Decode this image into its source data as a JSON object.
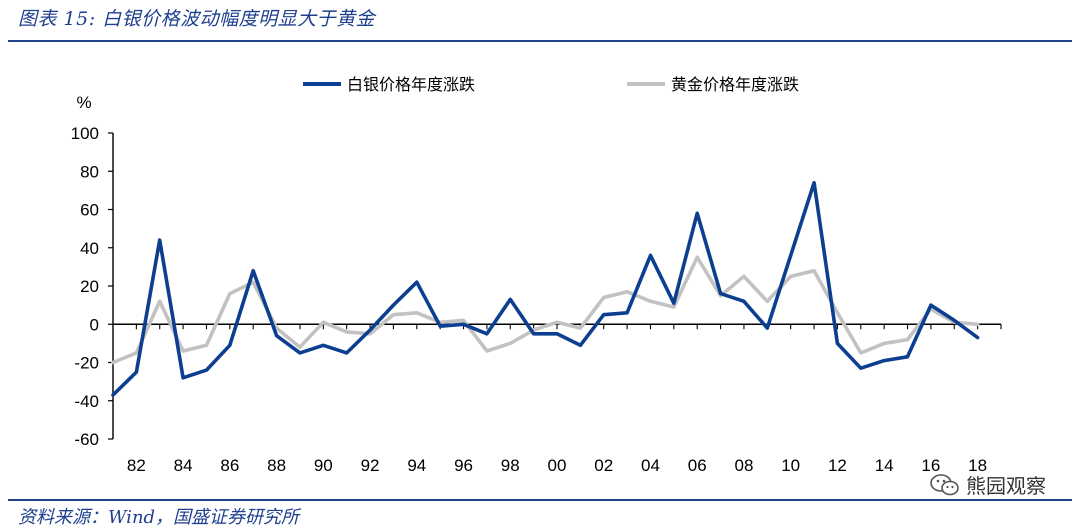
{
  "figure_title": "图表 15:  白银价格波动幅度明显大于黄金",
  "source": "资料来源：Wind，国盛证券研究所",
  "watermark": {
    "text": "熊园观察",
    "icon": "wechat-icon"
  },
  "colors": {
    "title": "#1f3f8f",
    "silver_series": "#0d3f91",
    "gold_series": "#c2c2c2",
    "axis": "#000000"
  },
  "chart_data": {
    "type": "line",
    "title": "",
    "ylabel": "%",
    "xlabel": "",
    "ylim": [
      -60,
      100
    ],
    "yticks": [
      100,
      80,
      60,
      40,
      20,
      0,
      -20,
      -40,
      -60
    ],
    "ytick_labels": [
      "100",
      "80",
      "60",
      "40",
      "20",
      "0",
      "-20",
      "-40",
      "-60"
    ],
    "xlim": [
      1981,
      2019
    ],
    "xticks": [
      1982,
      1984,
      1986,
      1988,
      1990,
      1992,
      1994,
      1996,
      1998,
      2000,
      2002,
      2004,
      2006,
      2008,
      2010,
      2012,
      2014,
      2016,
      2018
    ],
    "xtick_labels": [
      "82",
      "84",
      "86",
      "88",
      "90",
      "92",
      "94",
      "96",
      "98",
      "00",
      "02",
      "04",
      "06",
      "08",
      "10",
      "12",
      "14",
      "16",
      "18"
    ],
    "legend_position": "top",
    "series": [
      {
        "name": "白银价格年度涨跌",
        "points": [
          [
            1981,
            -37
          ],
          [
            1982,
            -25
          ],
          [
            1983,
            44
          ],
          [
            1984,
            -28
          ],
          [
            1985,
            -24
          ],
          [
            1986,
            -11
          ],
          [
            1987,
            28
          ],
          [
            1988,
            -6
          ],
          [
            1989,
            -15
          ],
          [
            1990,
            -11
          ],
          [
            1991,
            -15
          ],
          [
            1992,
            -3
          ],
          [
            1993,
            10
          ],
          [
            1994,
            22
          ],
          [
            1995,
            -1
          ],
          [
            1996,
            0
          ],
          [
            1997,
            -5
          ],
          [
            1998,
            13
          ],
          [
            1999,
            -5
          ],
          [
            2000,
            -5
          ],
          [
            2001,
            -11
          ],
          [
            2002,
            5
          ],
          [
            2003,
            6
          ],
          [
            2004,
            36
          ],
          [
            2005,
            11
          ],
          [
            2006,
            58
          ],
          [
            2007,
            16
          ],
          [
            2008,
            12
          ],
          [
            2009,
            -2
          ],
          [
            2010,
            36
          ],
          [
            2011,
            74
          ],
          [
            2012,
            -10
          ],
          [
            2013,
            -23
          ],
          [
            2014,
            -19
          ],
          [
            2015,
            -17
          ],
          [
            2016,
            10
          ],
          [
            2017,
            2
          ],
          [
            2018,
            -7
          ]
        ]
      },
      {
        "name": "黄金价格年度涨跌",
        "points": [
          [
            1981,
            -20
          ],
          [
            1982,
            -15
          ],
          [
            1983,
            12
          ],
          [
            1984,
            -14
          ],
          [
            1985,
            -11
          ],
          [
            1986,
            16
          ],
          [
            1987,
            22
          ],
          [
            1988,
            -2
          ],
          [
            1989,
            -12
          ],
          [
            1990,
            1
          ],
          [
            1991,
            -4
          ],
          [
            1992,
            -5
          ],
          [
            1993,
            5
          ],
          [
            1994,
            6
          ],
          [
            1995,
            1
          ],
          [
            1996,
            2
          ],
          [
            1997,
            -14
          ],
          [
            1998,
            -10
          ],
          [
            1999,
            -3
          ],
          [
            2000,
            1
          ],
          [
            2001,
            -2
          ],
          [
            2002,
            14
          ],
          [
            2003,
            17
          ],
          [
            2004,
            12
          ],
          [
            2005,
            9
          ],
          [
            2006,
            35
          ],
          [
            2007,
            15
          ],
          [
            2008,
            25
          ],
          [
            2009,
            12
          ],
          [
            2010,
            25
          ],
          [
            2011,
            28
          ],
          [
            2012,
            6
          ],
          [
            2013,
            -15
          ],
          [
            2014,
            -10
          ],
          [
            2015,
            -8
          ],
          [
            2016,
            8
          ],
          [
            2017,
            1
          ],
          [
            2018,
            0
          ]
        ]
      }
    ]
  }
}
